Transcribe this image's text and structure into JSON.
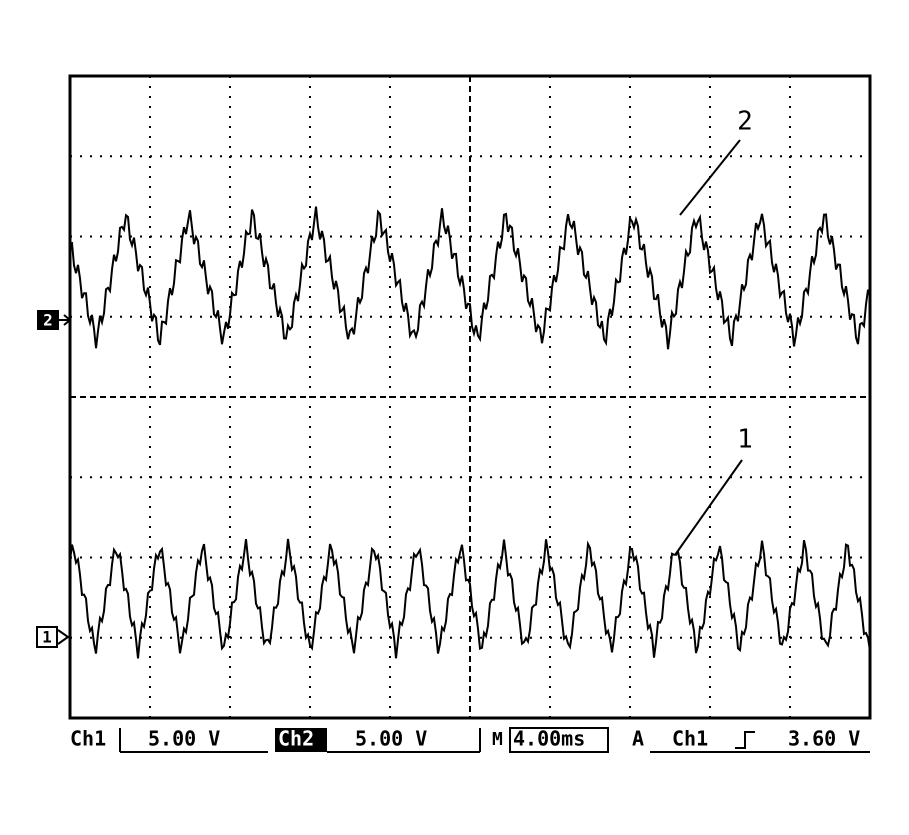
{
  "screen": {
    "traces": [
      {
        "label": "2",
        "marker": "2"
      },
      {
        "label": "1",
        "marker": "1"
      }
    ],
    "status": {
      "ch1": "Ch1",
      "ch1_scale": "5.00 V",
      "ch2": "Ch2",
      "ch2_scale": "5.00 V",
      "time_prefix": "M",
      "timebase": "4.00ms",
      "trigger_mode": "A",
      "trigger_source": "Ch1",
      "trigger_level": "3.60 V"
    }
  }
}
